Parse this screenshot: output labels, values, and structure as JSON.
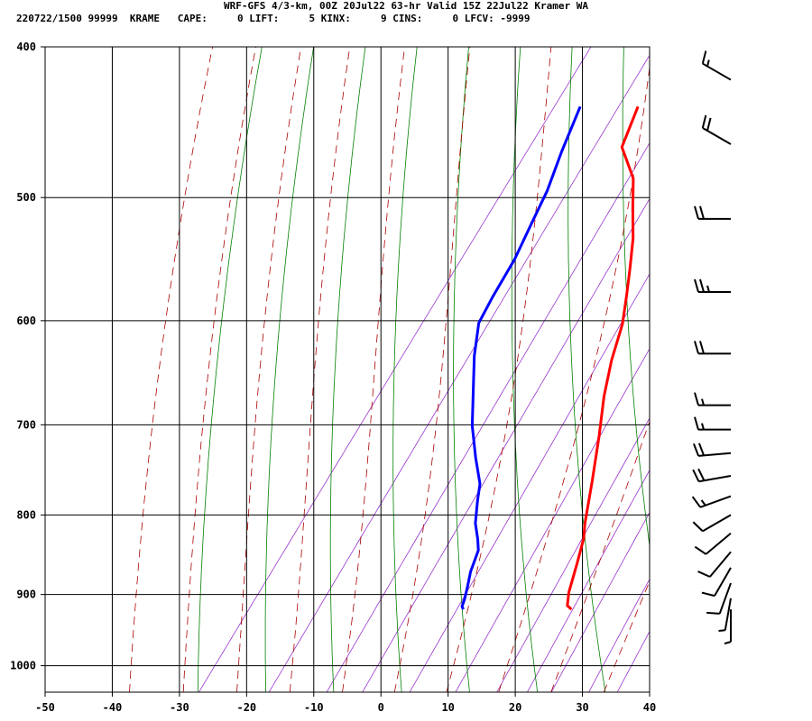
{
  "header": {
    "title": "WRF-GFS 4/3-km, 00Z 20Jul22 63-hr Valid 15Z 22Jul22 Kramer WA",
    "info_line": "220722/1500 99999  KRAME   CAPE:     0 LIFT:     5 KINX:     9 CINS:     0 LFCV: -9999"
  },
  "chart_data": {
    "type": "line",
    "xlim": [
      -50,
      40
    ],
    "ylim": [
      1040,
      400
    ],
    "y_scale": "log",
    "x_ticks": [
      "-50",
      "-40",
      "-30",
      "-20",
      "-10",
      "0",
      "10",
      "20",
      "30",
      "40"
    ],
    "x_tick_values": [
      -50,
      -40,
      -30,
      -20,
      -10,
      0,
      10,
      20,
      30,
      40
    ],
    "y_ticks": [
      "400",
      "500",
      "600",
      "700",
      "800",
      "900",
      "1000"
    ],
    "y_tick_values": [
      400,
      500,
      600,
      700,
      800,
      900,
      1000
    ],
    "grid": true,
    "series": [
      {
        "color": "#ff0000",
        "points": [
          [
            -23.7,
            437
          ],
          [
            -21.8,
            464
          ],
          [
            -16.8,
            486
          ],
          [
            -13.7,
            508
          ],
          [
            -10.5,
            531
          ],
          [
            -7.8,
            555
          ],
          [
            -5.5,
            577
          ],
          [
            -3.0,
            603
          ],
          [
            -0.8,
            636
          ],
          [
            1.9,
            671
          ],
          [
            5.4,
            712
          ],
          [
            9.2,
            762
          ],
          [
            12.5,
            810
          ],
          [
            13.9,
            828
          ],
          [
            15.6,
            860
          ],
          [
            17.4,
            897
          ],
          [
            18.6,
            915
          ],
          [
            19.6,
            920
          ]
        ]
      },
      {
        "color": "#0000ff",
        "points": [
          [
            -32.3,
            437
          ],
          [
            -30.3,
            467
          ],
          [
            -28.3,
            495
          ],
          [
            -27.2,
            519
          ],
          [
            -25.9,
            548
          ],
          [
            -25.2,
            579
          ],
          [
            -24.5,
            602
          ],
          [
            -21.7,
            632
          ],
          [
            -17.7,
            670
          ],
          [
            -14.6,
            701
          ],
          [
            -10.7,
            735
          ],
          [
            -7.3,
            764
          ],
          [
            -5.9,
            783
          ],
          [
            -3.8,
            810
          ],
          [
            -1.8,
            829
          ],
          [
            -0.5,
            843
          ],
          [
            0.6,
            870
          ],
          [
            1.7,
            889
          ],
          [
            2.6,
            906
          ],
          [
            3.0,
            916
          ],
          [
            3.5,
            920
          ]
        ]
      }
    ],
    "wind_barbs": [
      {
        "p": 420,
        "dir": 300,
        "spd": 15
      },
      {
        "p": 462,
        "dir": 300,
        "spd": 20
      },
      {
        "p": 516,
        "dir": 270,
        "spd": 20
      },
      {
        "p": 575,
        "dir": 270,
        "spd": 25
      },
      {
        "p": 630,
        "dir": 270,
        "spd": 20
      },
      {
        "p": 680,
        "dir": 270,
        "spd": 15
      },
      {
        "p": 705,
        "dir": 270,
        "spd": 15
      },
      {
        "p": 730,
        "dir": 265,
        "spd": 20
      },
      {
        "p": 755,
        "dir": 260,
        "spd": 20
      },
      {
        "p": 778,
        "dir": 250,
        "spd": 15
      },
      {
        "p": 800,
        "dir": 240,
        "spd": 10
      },
      {
        "p": 822,
        "dir": 230,
        "spd": 10
      },
      {
        "p": 845,
        "dir": 220,
        "spd": 10
      },
      {
        "p": 865,
        "dir": 210,
        "spd": 10
      },
      {
        "p": 885,
        "dir": 200,
        "spd": 10
      },
      {
        "p": 905,
        "dir": 190,
        "spd": 5
      },
      {
        "p": 920,
        "dir": 180,
        "spd": 5
      }
    ],
    "background": {
      "dry_adiabat_color": "#008000",
      "moist_adiabat_color": "#aa0000",
      "mixing_ratio_color": "#9933cc",
      "grid_color": "#000000"
    }
  }
}
